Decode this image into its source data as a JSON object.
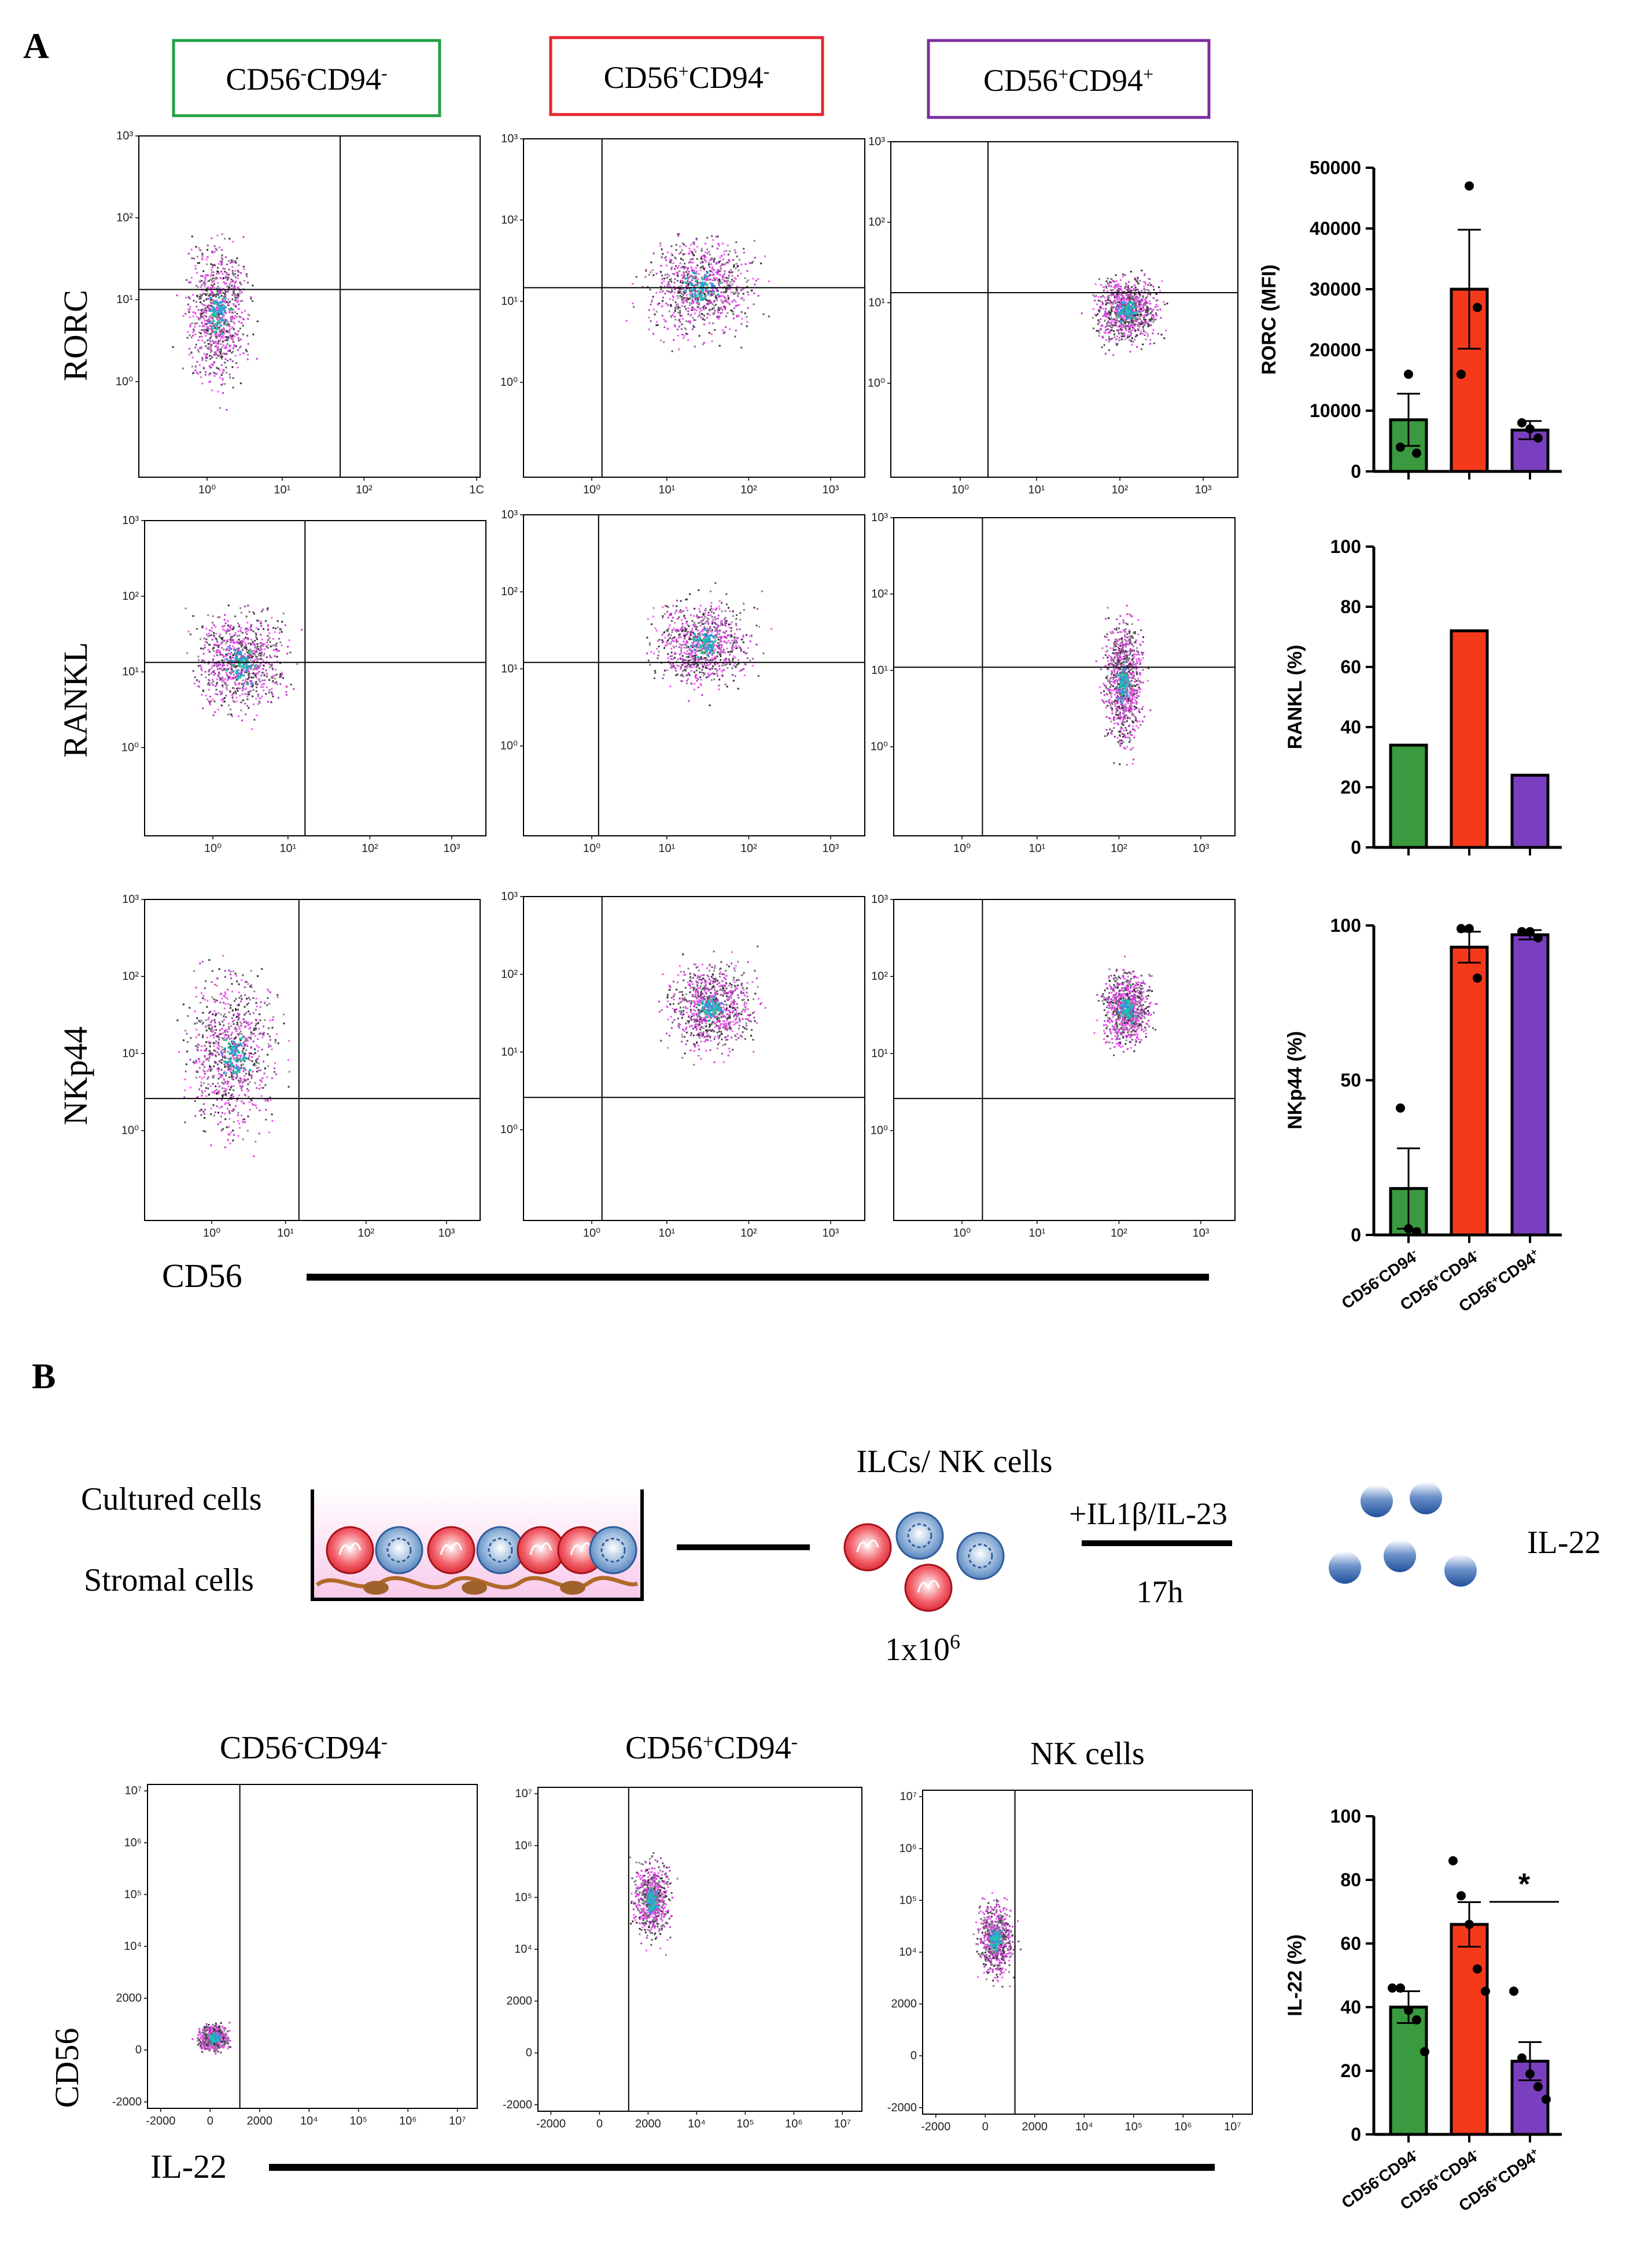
{
  "panel_a": {
    "label": "A",
    "headers": [
      {
        "text": "CD56",
        "sup1": "-",
        "text2": "CD94",
        "sup2": "-",
        "color": "#22a045"
      },
      {
        "text": "CD56",
        "sup1": "+",
        "text2": "CD94",
        "sup2": "-",
        "color": "#e8242b"
      },
      {
        "text": "CD56",
        "sup1": "+",
        "text2": "CD94",
        "sup2": "+",
        "color": "#7b2d9e"
      }
    ],
    "row_labels": [
      "RORC",
      "RANKL",
      "NKp44"
    ],
    "x_label": "CD56",
    "log_ticks": [
      "10⁰",
      "10¹",
      "10²",
      "10³"
    ],
    "log_tick_clipped": "1C"
  },
  "panel_b": {
    "label": "B",
    "schematic": {
      "cultured": "Cultured cells",
      "stromal": "Stromal cells",
      "ilcs": "ILCs/ NK cells",
      "count": "1x10",
      "count_exp": "6",
      "stim": "+IL1β/IL-23",
      "time": "17h",
      "product": "IL-22"
    },
    "plot_titles": [
      {
        "text": "CD56",
        "sup1": "-",
        "text2": "CD94",
        "sup2": "-"
      },
      {
        "text": "CD56",
        "sup1": "+",
        "text2": "CD94",
        "sup2": "-"
      },
      {
        "text": "NK cells",
        "sup1": "",
        "text2": "",
        "sup2": ""
      }
    ],
    "y_label": "CD56",
    "x_label": "IL-22",
    "y_ticks": [
      "10⁷",
      "10⁶",
      "10⁵",
      "10⁴",
      "2000",
      "0",
      "-2000"
    ],
    "x_ticks": [
      "-2000",
      "0",
      "2000",
      "10⁴",
      "10⁵",
      "10⁶",
      "10⁷"
    ],
    "significance": "*"
  },
  "colors": {
    "green": "#3a9a3f",
    "red": "#f53a1c",
    "purple": "#7a3fbf"
  },
  "chart_data": [
    {
      "type": "bar",
      "ylabel": "RORC (MFI)",
      "ylim": [
        0,
        50000
      ],
      "yticks": [
        0,
        10000,
        20000,
        30000,
        40000,
        50000
      ],
      "categories": [
        "CD56-CD94-",
        "CD56+CD94-",
        "CD56+CD94+"
      ],
      "values": [
        8500,
        30000,
        6800
      ],
      "errors": [
        4300,
        9800,
        1500
      ],
      "points": [
        [
          4000,
          16000,
          3000
        ],
        [
          16000,
          47000,
          27000
        ],
        [
          8000,
          7000,
          5500
        ]
      ]
    },
    {
      "type": "bar",
      "ylabel": "RANKL (%)",
      "ylim": [
        0,
        100
      ],
      "yticks": [
        0,
        20,
        40,
        60,
        80,
        100
      ],
      "categories": [
        "CD56-CD94-",
        "CD56+CD94-",
        "CD56+CD94+"
      ],
      "values": [
        34,
        72,
        24
      ]
    },
    {
      "type": "bar",
      "ylabel": "NKp44 (%)",
      "ylim": [
        0,
        100
      ],
      "yticks": [
        0,
        50,
        100
      ],
      "categories": [
        "CD56-CD94-",
        "CD56+CD94-",
        "CD56+CD94+"
      ],
      "tick_labels": [
        {
          "a": "CD56",
          "s1": "-",
          "b": "CD94",
          "s2": "-"
        },
        {
          "a": "CD56",
          "s1": "+",
          "b": "CD94",
          "s2": "-"
        },
        {
          "a": "CD56",
          "s1": "+",
          "b": "CD94",
          "s2": "+"
        }
      ],
      "values": [
        15,
        93,
        97
      ],
      "errors": [
        13,
        5,
        1.5
      ],
      "points": [
        [
          41,
          2,
          1
        ],
        [
          99,
          99,
          83
        ],
        [
          98,
          98,
          96
        ]
      ]
    },
    {
      "type": "bar",
      "ylabel": "IL-22 (%)",
      "ylim": [
        0,
        100
      ],
      "yticks": [
        0,
        20,
        40,
        60,
        80,
        100
      ],
      "categories": [
        "CD56-CD94-",
        "CD56+CD94-",
        "CD56+CD94+"
      ],
      "tick_labels": [
        {
          "a": "CD56",
          "s1": "-",
          "b": "CD94",
          "s2": "-"
        },
        {
          "a": "CD56",
          "s1": "+",
          "b": "CD94",
          "s2": "-"
        },
        {
          "a": "CD56",
          "s1": "+",
          "b": "CD94",
          "s2": "+"
        }
      ],
      "values": [
        40,
        66,
        23
      ],
      "errors": [
        5,
        7,
        6
      ],
      "points": [
        [
          46,
          46,
          39,
          36,
          26
        ],
        [
          86,
          75,
          66,
          52,
          45
        ],
        [
          45,
          24,
          19,
          15,
          11
        ]
      ]
    }
  ]
}
